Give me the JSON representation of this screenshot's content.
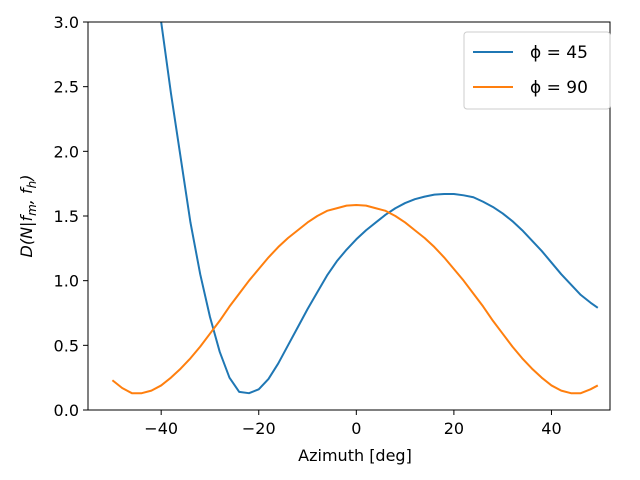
{
  "chart_data": {
    "type": "line",
    "title": "",
    "xlabel": "Azimuth [deg]",
    "ylabel_parts": {
      "pre": "D(N|f",
      "sub1": "m",
      "mid": ", f",
      "sub2": "h",
      "post": ")"
    },
    "xlim": [
      -55,
      52
    ],
    "ylim": [
      0,
      3.0
    ],
    "xticks": [
      -40,
      -20,
      0,
      20,
      40
    ],
    "xtick_labels": [
      "−40",
      "−20",
      "0",
      "20",
      "40"
    ],
    "yticks": [
      0,
      0.5,
      1.0,
      1.5,
      2.0,
      2.5,
      3.0
    ],
    "ytick_labels": [
      "0.0",
      "0.5",
      "1.0",
      "1.5",
      "2.0",
      "2.5",
      "3.0"
    ],
    "grid": false,
    "legend_position": "top-right",
    "series": [
      {
        "name": "ϕ = 45",
        "color": "#1f77b4",
        "x": [
          -40,
          -38,
          -36,
          -34,
          -32,
          -30,
          -28,
          -26,
          -24,
          -22,
          -20,
          -18,
          -16,
          -14,
          -12,
          -10,
          -8,
          -6,
          -4,
          -2,
          0,
          2,
          4,
          6,
          8,
          10,
          12,
          14,
          16,
          18,
          20,
          22,
          24,
          26,
          28,
          30,
          32,
          34,
          36,
          38,
          40,
          42,
          44,
          46,
          48,
          49.5
        ],
        "y": [
          3.0,
          2.45,
          1.95,
          1.45,
          1.05,
          0.72,
          0.45,
          0.25,
          0.14,
          0.13,
          0.16,
          0.24,
          0.36,
          0.5,
          0.64,
          0.78,
          0.91,
          1.04,
          1.15,
          1.24,
          1.32,
          1.39,
          1.45,
          1.51,
          1.56,
          1.6,
          1.63,
          1.65,
          1.665,
          1.67,
          1.67,
          1.66,
          1.645,
          1.61,
          1.57,
          1.52,
          1.46,
          1.39,
          1.31,
          1.23,
          1.14,
          1.05,
          0.97,
          0.89,
          0.83,
          0.79
        ]
      },
      {
        "name": "ϕ = 90",
        "color": "#ff7f0e",
        "x": [
          -50,
          -48,
          -46,
          -44,
          -42,
          -40,
          -38,
          -36,
          -34,
          -32,
          -30,
          -28,
          -26,
          -24,
          -22,
          -20,
          -18,
          -16,
          -14,
          -12,
          -10,
          -8,
          -6,
          -4,
          -2,
          0,
          2,
          4,
          6,
          8,
          10,
          12,
          14,
          16,
          18,
          20,
          22,
          24,
          26,
          28,
          30,
          32,
          34,
          36,
          38,
          40,
          42,
          44,
          46,
          48,
          49.5
        ],
        "y": [
          0.23,
          0.17,
          0.13,
          0.13,
          0.15,
          0.19,
          0.25,
          0.32,
          0.4,
          0.49,
          0.59,
          0.69,
          0.8,
          0.9,
          1.0,
          1.09,
          1.18,
          1.26,
          1.33,
          1.39,
          1.45,
          1.5,
          1.54,
          1.56,
          1.58,
          1.585,
          1.58,
          1.56,
          1.54,
          1.5,
          1.45,
          1.39,
          1.33,
          1.26,
          1.18,
          1.09,
          1.0,
          0.9,
          0.8,
          0.69,
          0.59,
          0.49,
          0.4,
          0.32,
          0.25,
          0.19,
          0.15,
          0.13,
          0.13,
          0.16,
          0.19
        ]
      }
    ]
  }
}
